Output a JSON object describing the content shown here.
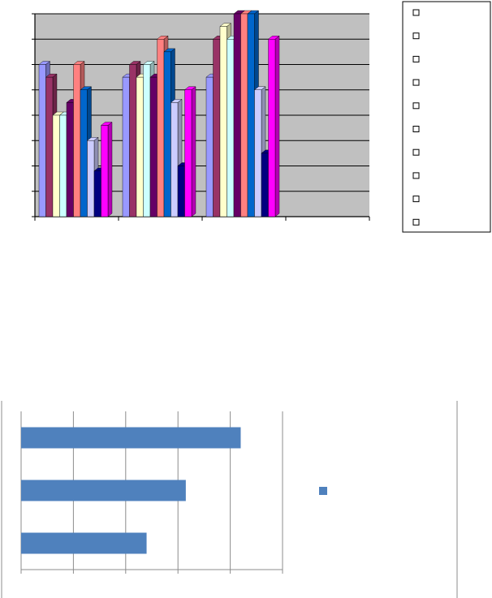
{
  "chart_data": [
    {
      "type": "bar",
      "style": "3d-clustered-column",
      "categories": [
        "",
        "",
        "",
        ""
      ],
      "ylim": [
        0,
        8
      ],
      "grid": true,
      "plot_background": "#c0c0c0",
      "legend_position": "right",
      "series": [
        {
          "color": "#9999ff",
          "values": [
            6,
            5.5,
            5.5,
            null
          ]
        },
        {
          "color": "#993366",
          "values": [
            5.5,
            6,
            7,
            null
          ]
        },
        {
          "color": "#ffffcc",
          "values": [
            4,
            5.5,
            7.5,
            null
          ]
        },
        {
          "color": "#ccffff",
          "values": [
            4,
            6,
            7,
            null
          ]
        },
        {
          "color": "#660066",
          "values": [
            4.5,
            5.5,
            8,
            null
          ]
        },
        {
          "color": "#ff8080",
          "values": [
            6,
            7,
            8,
            null
          ]
        },
        {
          "color": "#0066cc",
          "values": [
            5,
            6.5,
            8,
            null
          ]
        },
        {
          "color": "#ccccff",
          "values": [
            3,
            4.5,
            5,
            null
          ]
        },
        {
          "color": "#000080",
          "values": [
            1.8,
            2,
            2.5,
            null
          ]
        },
        {
          "color": "#ff00ff",
          "values": [
            3.6,
            5,
            7,
            null
          ]
        }
      ],
      "legend": {
        "entries": [
          "",
          "",
          "",
          "",
          "",
          "",
          "",
          "",
          "",
          ""
        ]
      }
    },
    {
      "type": "bar",
      "orientation": "horizontal",
      "categories": [
        "",
        "",
        ""
      ],
      "xlim": [
        0,
        5
      ],
      "values": [
        4.2,
        3.15,
        2.4
      ],
      "color": "#4f81bd",
      "grid": true,
      "legend_position": "right",
      "legend": {
        "entries": [
          ""
        ]
      }
    }
  ]
}
